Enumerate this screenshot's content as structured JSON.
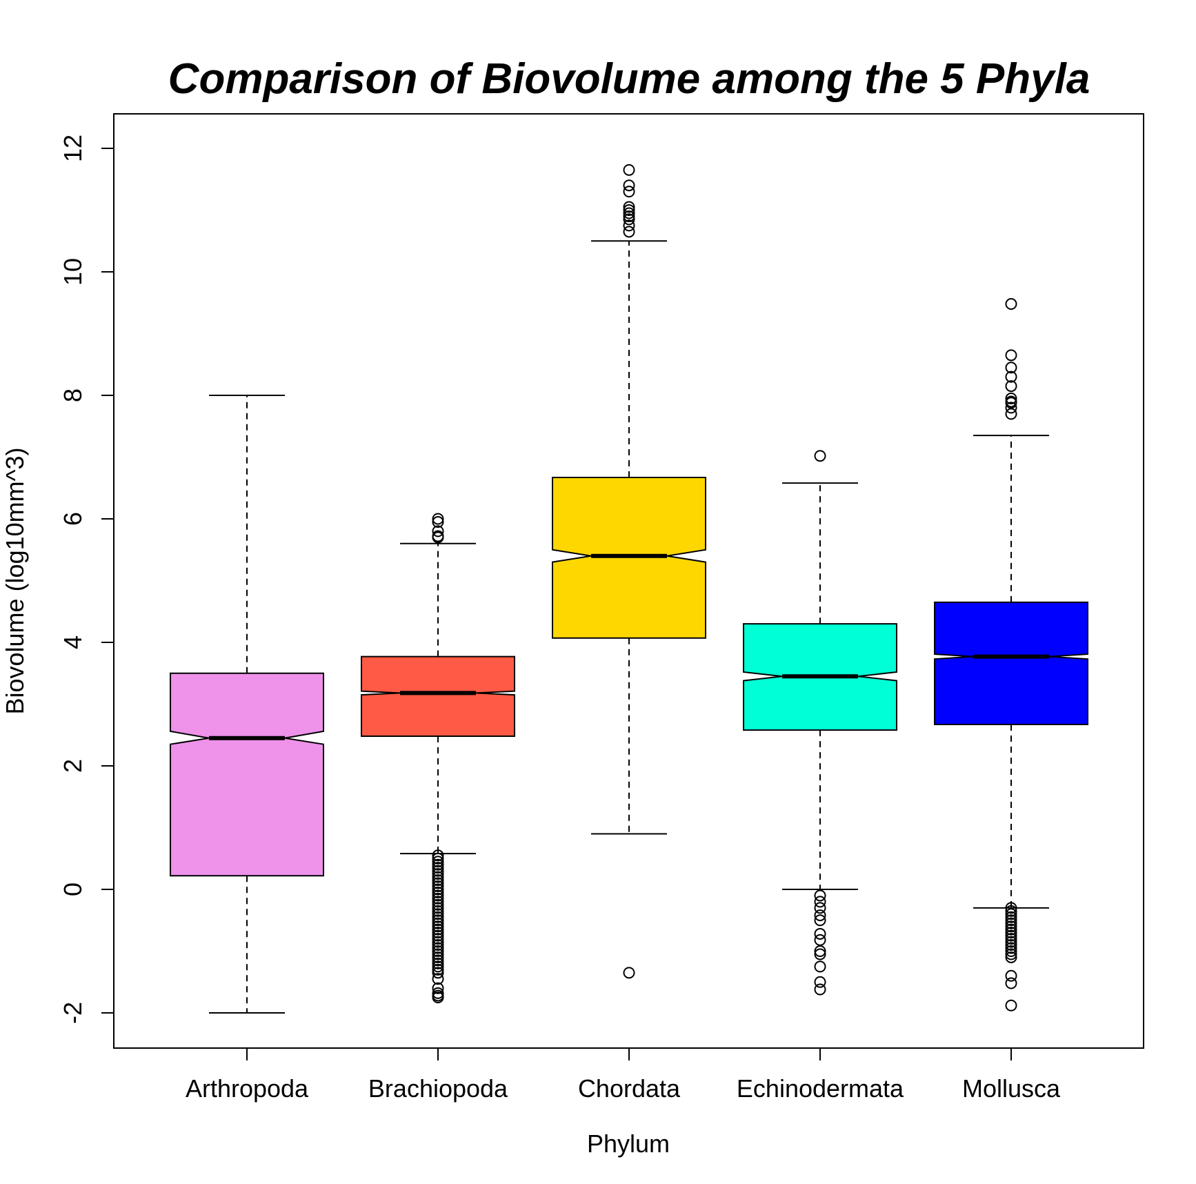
{
  "chart_data": {
    "type": "boxplot",
    "notched": true,
    "title": "Comparison of Biovolume among the 5 Phyla",
    "xlabel": "Phylum",
    "ylabel": "Biovolume (log10mm^3)",
    "ylim": [
      -2.6,
      12.5
    ],
    "yticks": [
      -2,
      0,
      2,
      4,
      6,
      8,
      10,
      12
    ],
    "ytick_labels": [
      "-2",
      "0",
      "2",
      "4",
      "6",
      "8",
      "10",
      "12"
    ],
    "categories": [
      "Arthropoda",
      "Brachiopoda",
      "Chordata",
      "Echinodermata",
      "Mollusca"
    ],
    "grid": false,
    "boxes": [
      {
        "name": "Arthropoda",
        "color": "#EE92EA",
        "whisker_low": -2.0,
        "q1": 0.22,
        "median": 2.45,
        "q3": 3.5,
        "whisker_high": 8.0,
        "notch_low": 2.35,
        "notch_high": 2.56,
        "outliers": []
      },
      {
        "name": "Brachiopoda",
        "color": "#FF5A45",
        "whisker_low": 0.58,
        "q1": 2.48,
        "median": 3.18,
        "q3": 3.77,
        "whisker_high": 5.6,
        "notch_low": 3.15,
        "notch_high": 3.21,
        "outliers": [
          6.0,
          5.95,
          5.8,
          5.72,
          5.7,
          0.55,
          0.5,
          0.45,
          0.4,
          0.35,
          0.3,
          0.25,
          0.2,
          0.15,
          0.1,
          0.05,
          0.0,
          -0.05,
          -0.1,
          -0.15,
          -0.2,
          -0.25,
          -0.3,
          -0.35,
          -0.4,
          -0.45,
          -0.5,
          -0.55,
          -0.6,
          -0.65,
          -0.7,
          -0.75,
          -0.8,
          -0.85,
          -0.9,
          -0.95,
          -1.0,
          -1.05,
          -1.1,
          -1.15,
          -1.2,
          -1.25,
          -1.3,
          -1.35,
          -1.45,
          -1.6,
          -1.68,
          -1.72,
          -1.75
        ]
      },
      {
        "name": "Chordata",
        "color": "#FFD700",
        "whisker_low": 0.9,
        "q1": 4.07,
        "median": 5.4,
        "q3": 6.67,
        "whisker_high": 10.5,
        "notch_low": 5.3,
        "notch_high": 5.5,
        "outliers": [
          11.65,
          11.4,
          11.3,
          11.05,
          11.0,
          10.95,
          10.9,
          10.85,
          10.75,
          10.65,
          -1.35
        ]
      },
      {
        "name": "Echinodermata",
        "color": "#00FFD5",
        "whisker_low": 0.0,
        "q1": 2.58,
        "median": 3.45,
        "q3": 4.3,
        "whisker_high": 6.58,
        "notch_low": 3.38,
        "notch_high": 3.52,
        "outliers": [
          7.02,
          -0.1,
          -0.2,
          -0.3,
          -0.42,
          -0.5,
          -0.72,
          -0.82,
          -1.0,
          -1.05,
          -1.25,
          -1.5,
          -1.62
        ]
      },
      {
        "name": "Mollusca",
        "color": "#0000FF",
        "whisker_low": -0.3,
        "q1": 2.67,
        "median": 3.77,
        "q3": 4.65,
        "whisker_high": 7.35,
        "notch_low": 3.73,
        "notch_high": 3.81,
        "outliers": [
          9.48,
          8.65,
          8.45,
          8.3,
          8.15,
          7.95,
          7.9,
          7.88,
          7.8,
          7.7,
          -0.3,
          -0.35,
          -0.4,
          -0.45,
          -0.5,
          -0.55,
          -0.6,
          -0.65,
          -0.7,
          -0.75,
          -0.8,
          -0.85,
          -0.9,
          -0.95,
          -1.0,
          -1.05,
          -1.1,
          -1.4,
          -1.52,
          -1.88
        ]
      }
    ]
  }
}
